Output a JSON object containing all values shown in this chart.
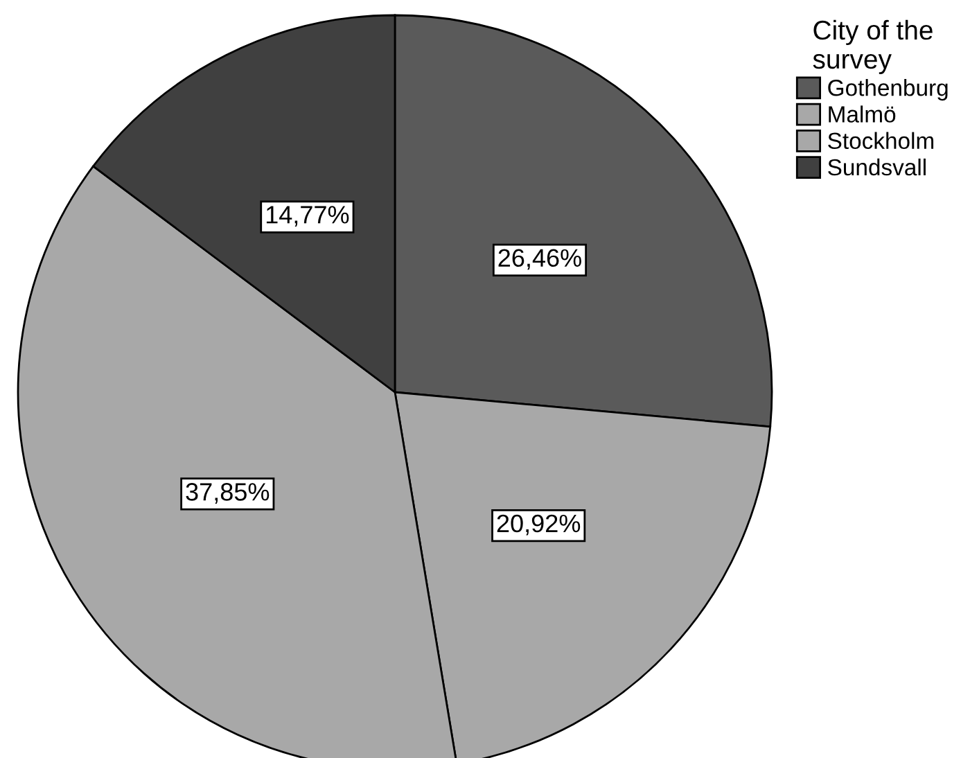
{
  "chart_data": {
    "type": "pie",
    "legend_title": "City of the survey",
    "legend": "top right",
    "categories": [
      "Gothenburg",
      "Malmö",
      "Stockholm",
      "Sundsvall"
    ],
    "values": [
      26.46,
      20.92,
      37.85,
      14.77
    ],
    "value_labels": [
      "26,46%",
      "20,92%",
      "37,85%",
      "14,77%"
    ],
    "colors": [
      "#5a5a5a",
      "#a8a8a8",
      "#a8a8a8",
      "#404040"
    ]
  }
}
